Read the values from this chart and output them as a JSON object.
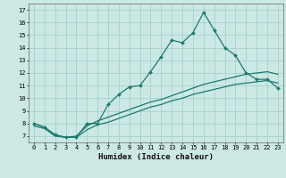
{
  "xlabel": "Humidex (Indice chaleur)",
  "ylabel": "",
  "background_color": "#cce8e4",
  "grid_color": "#9ecfca",
  "line_color": "#1a7a6e",
  "xlim": [
    -0.5,
    23.5
  ],
  "ylim": [
    6.5,
    17.5
  ],
  "xticks": [
    0,
    1,
    2,
    3,
    4,
    5,
    6,
    7,
    8,
    9,
    10,
    11,
    12,
    13,
    14,
    15,
    16,
    17,
    18,
    19,
    20,
    21,
    22,
    23
  ],
  "yticks": [
    7,
    8,
    9,
    10,
    11,
    12,
    13,
    14,
    15,
    16,
    17
  ],
  "curve1_x": [
    0,
    1,
    2,
    3,
    4,
    5,
    6,
    7,
    8,
    9,
    10,
    11,
    12,
    13,
    14,
    15,
    16,
    17,
    18,
    19,
    20,
    21,
    22,
    23
  ],
  "curve1_y": [
    8.0,
    7.7,
    7.1,
    6.9,
    6.9,
    8.0,
    8.0,
    9.5,
    10.3,
    10.9,
    11.0,
    12.1,
    13.3,
    14.6,
    14.4,
    15.2,
    16.8,
    15.4,
    14.0,
    13.4,
    12.0,
    11.5,
    11.5,
    10.8
  ],
  "curve2_x": [
    0,
    1,
    2,
    3,
    4,
    5,
    6,
    7,
    8,
    9,
    10,
    11,
    12,
    13,
    14,
    15,
    16,
    17,
    18,
    19,
    20,
    21,
    22,
    23
  ],
  "curve2_y": [
    8.0,
    7.7,
    7.1,
    6.9,
    7.0,
    7.8,
    8.2,
    8.5,
    8.8,
    9.1,
    9.4,
    9.7,
    9.9,
    10.2,
    10.5,
    10.8,
    11.1,
    11.3,
    11.5,
    11.7,
    11.9,
    12.0,
    12.1,
    11.9
  ],
  "curve3_x": [
    0,
    1,
    2,
    3,
    4,
    5,
    6,
    7,
    8,
    9,
    10,
    11,
    12,
    13,
    14,
    15,
    16,
    17,
    18,
    19,
    20,
    21,
    22,
    23
  ],
  "curve3_y": [
    7.8,
    7.6,
    7.0,
    6.9,
    6.9,
    7.5,
    7.9,
    8.1,
    8.4,
    8.7,
    9.0,
    9.3,
    9.5,
    9.8,
    10.0,
    10.3,
    10.5,
    10.7,
    10.9,
    11.1,
    11.2,
    11.3,
    11.4,
    11.2
  ],
  "xlabel_fontsize": 6.5,
  "tick_fontsize": 5.0
}
